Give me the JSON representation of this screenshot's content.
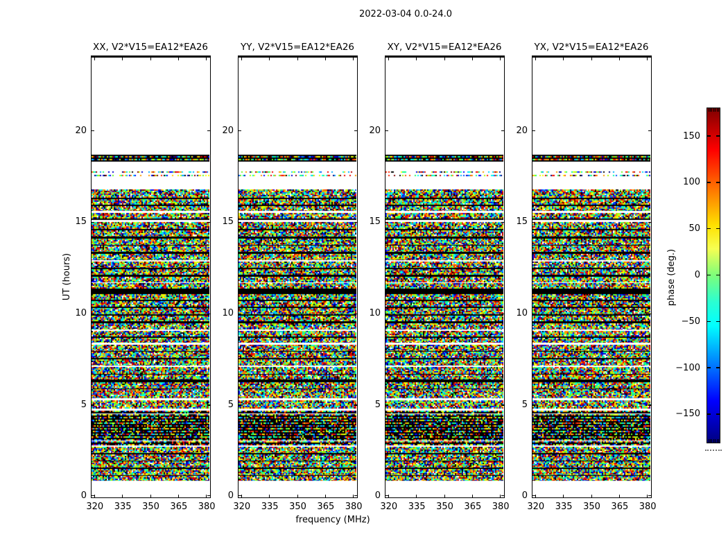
{
  "figure": {
    "suptitle": "2022-03-04 0.0-24.0",
    "xlabel": "frequency (MHz)",
    "ylabel": "UT (hours)",
    "colorbar_label": "phase (deg.)",
    "background": "#ffffff",
    "text_color": "#000000"
  },
  "panels": [
    {
      "title": "XX, V2*V15=EA12*EA26",
      "seed": 11
    },
    {
      "title": "YY, V2*V15=EA12*EA26",
      "seed": 23
    },
    {
      "title": "XY, V2*V15=EA12*EA26",
      "seed": 37
    },
    {
      "title": "YX, V2*V15=EA12*EA26",
      "seed": 51
    }
  ],
  "axes": {
    "x_tick_labels": [
      "320",
      "335",
      "350",
      "365",
      "380"
    ],
    "x_tick_values": [
      320,
      335,
      350,
      365,
      380
    ],
    "x_range": [
      318.4,
      381.6
    ],
    "y_tick_labels": [
      "0",
      "5",
      "10",
      "15",
      "20"
    ],
    "y_tick_values": [
      0,
      5,
      10,
      15,
      20
    ],
    "y_range": [
      0,
      24
    ]
  },
  "colorbar": {
    "tick_labels": [
      "150",
      "100",
      "50",
      "0",
      "−50",
      "−100",
      "−150"
    ],
    "tick_values": [
      150,
      100,
      50,
      0,
      -50,
      -100,
      -150
    ],
    "range": [
      -180,
      180
    ],
    "colormap": "jet"
  },
  "chart_data": {
    "type": "heatmap",
    "title": "2022-03-04 0.0-24.0",
    "panel_titles": [
      "XX, V2*V15=EA12*EA26",
      "YY, V2*V15=EA12*EA26",
      "XY, V2*V15=EA12*EA26",
      "YX, V2*V15=EA12*EA26"
    ],
    "xlabel": "frequency (MHz)",
    "x_range_mhz": [
      318.4,
      381.6
    ],
    "x_ticks_mhz": [
      320,
      335,
      350,
      365,
      380
    ],
    "ylabel": "UT (hours)",
    "y_range_hours": [
      0,
      24
    ],
    "y_ticks_hours": [
      0,
      5,
      10,
      15,
      20
    ],
    "value_label": "phase (deg.)",
    "value_range_deg": [
      -180,
      180
    ],
    "colormap": "jet",
    "legend_position": "right-colorbar",
    "grid": false,
    "description": "Four baseline phase waterfall panels (polarizations XX, YY, XY, YX) for baseline V2*V15=EA12*EA26. Random multicolored phase noise fills ~0.9-16.8 UT hours with many thin flagged (black) rows and occasional blank (white) gaps; a black flagged band sits near 18.3-18.7 h, two sparse dotted rows near 17.5-17.8 h, a heavily striped dark region near 2.8-4.7 h, and no data above 18.7 h or below 0.9 h. Pattern is identical across the four panels; pixel noise differs per panel.",
    "noise_palette": [
      "#000080",
      "#0000cd",
      "#0000ff",
      "#0055ff",
      "#00aaff",
      "#00ddff",
      "#00ffee",
      "#00ffaa",
      "#22ff66",
      "#66ff22",
      "#aaff00",
      "#ddff00",
      "#ffff00",
      "#ffcc00",
      "#ff9900",
      "#ff5500",
      "#ff2200",
      "#ee0000",
      "#bb0000",
      "#800000"
    ],
    "band_types": {
      "w": "white/no-data",
      "n": "random phase noise",
      "b": "flagged black row",
      "bn": "black band mixed with noise rows",
      "sp": "sparse dotted row",
      "st": "striped noise/black region"
    },
    "bands": [
      [
        24.0,
        18.7,
        "w"
      ],
      [
        18.7,
        18.32,
        "bn"
      ],
      [
        18.32,
        17.8,
        "w"
      ],
      [
        17.8,
        17.72,
        "sp"
      ],
      [
        17.72,
        17.6,
        "w"
      ],
      [
        17.6,
        17.52,
        "sp"
      ],
      [
        17.52,
        16.78,
        "w"
      ],
      [
        16.78,
        16.35,
        "n"
      ],
      [
        16.35,
        16.28,
        "b"
      ],
      [
        16.28,
        15.95,
        "n"
      ],
      [
        15.95,
        15.88,
        "b"
      ],
      [
        15.88,
        15.62,
        "n"
      ],
      [
        15.62,
        15.52,
        "w"
      ],
      [
        15.52,
        15.22,
        "n"
      ],
      [
        15.22,
        15.12,
        "b"
      ],
      [
        15.12,
        15.02,
        "w"
      ],
      [
        15.02,
        14.62,
        "n"
      ],
      [
        14.62,
        14.55,
        "b"
      ],
      [
        14.55,
        14.22,
        "n"
      ],
      [
        14.22,
        14.12,
        "b"
      ],
      [
        14.12,
        13.78,
        "n"
      ],
      [
        13.78,
        13.71,
        "b"
      ],
      [
        13.71,
        13.38,
        "n"
      ],
      [
        13.38,
        13.28,
        "b"
      ],
      [
        13.28,
        12.92,
        "n"
      ],
      [
        12.92,
        12.86,
        "w"
      ],
      [
        12.86,
        12.52,
        "n"
      ],
      [
        12.52,
        12.45,
        "b"
      ],
      [
        12.45,
        12.12,
        "n"
      ],
      [
        12.12,
        12.02,
        "b"
      ],
      [
        12.02,
        11.72,
        "n"
      ],
      [
        11.72,
        11.66,
        "w"
      ],
      [
        11.66,
        11.38,
        "n"
      ],
      [
        11.38,
        11.08,
        "b"
      ],
      [
        11.08,
        10.78,
        "n"
      ],
      [
        10.78,
        10.71,
        "b"
      ],
      [
        10.71,
        10.38,
        "n"
      ],
      [
        10.38,
        10.31,
        "b"
      ],
      [
        10.31,
        9.98,
        "n"
      ],
      [
        9.98,
        9.91,
        "b"
      ],
      [
        9.91,
        9.58,
        "n"
      ],
      [
        9.58,
        9.48,
        "b"
      ],
      [
        9.48,
        9.12,
        "n"
      ],
      [
        9.12,
        9.06,
        "w"
      ],
      [
        9.06,
        8.76,
        "n"
      ],
      [
        8.76,
        8.7,
        "b"
      ],
      [
        8.7,
        8.42,
        "n"
      ],
      [
        8.42,
        8.32,
        "w"
      ],
      [
        8.32,
        7.98,
        "n"
      ],
      [
        7.98,
        7.91,
        "b"
      ],
      [
        7.91,
        7.58,
        "n"
      ],
      [
        7.58,
        7.52,
        "b"
      ],
      [
        7.52,
        7.18,
        "n"
      ],
      [
        7.18,
        7.08,
        "w"
      ],
      [
        7.08,
        6.72,
        "n"
      ],
      [
        6.72,
        6.66,
        "b"
      ],
      [
        6.66,
        6.42,
        "n"
      ],
      [
        6.42,
        6.26,
        "b"
      ],
      [
        6.26,
        5.92,
        "n"
      ],
      [
        5.92,
        5.86,
        "b"
      ],
      [
        5.86,
        5.38,
        "n"
      ],
      [
        5.38,
        5.26,
        "w"
      ],
      [
        5.26,
        4.82,
        "n"
      ],
      [
        4.82,
        4.72,
        "w"
      ],
      [
        4.72,
        4.55,
        "st"
      ],
      [
        4.55,
        4.5,
        "w"
      ],
      [
        4.5,
        3.08,
        "st"
      ],
      [
        3.08,
        3.02,
        "w"
      ],
      [
        3.02,
        2.82,
        "st"
      ],
      [
        2.82,
        2.72,
        "w"
      ],
      [
        2.72,
        2.38,
        "n"
      ],
      [
        2.38,
        2.32,
        "b"
      ],
      [
        2.32,
        1.98,
        "n"
      ],
      [
        1.98,
        1.92,
        "b"
      ],
      [
        1.92,
        1.58,
        "n"
      ],
      [
        1.58,
        1.52,
        "b"
      ],
      [
        1.52,
        1.18,
        "n"
      ],
      [
        1.18,
        1.12,
        "b"
      ],
      [
        1.12,
        0.86,
        "n"
      ],
      [
        0.86,
        0.0,
        "w"
      ]
    ]
  }
}
